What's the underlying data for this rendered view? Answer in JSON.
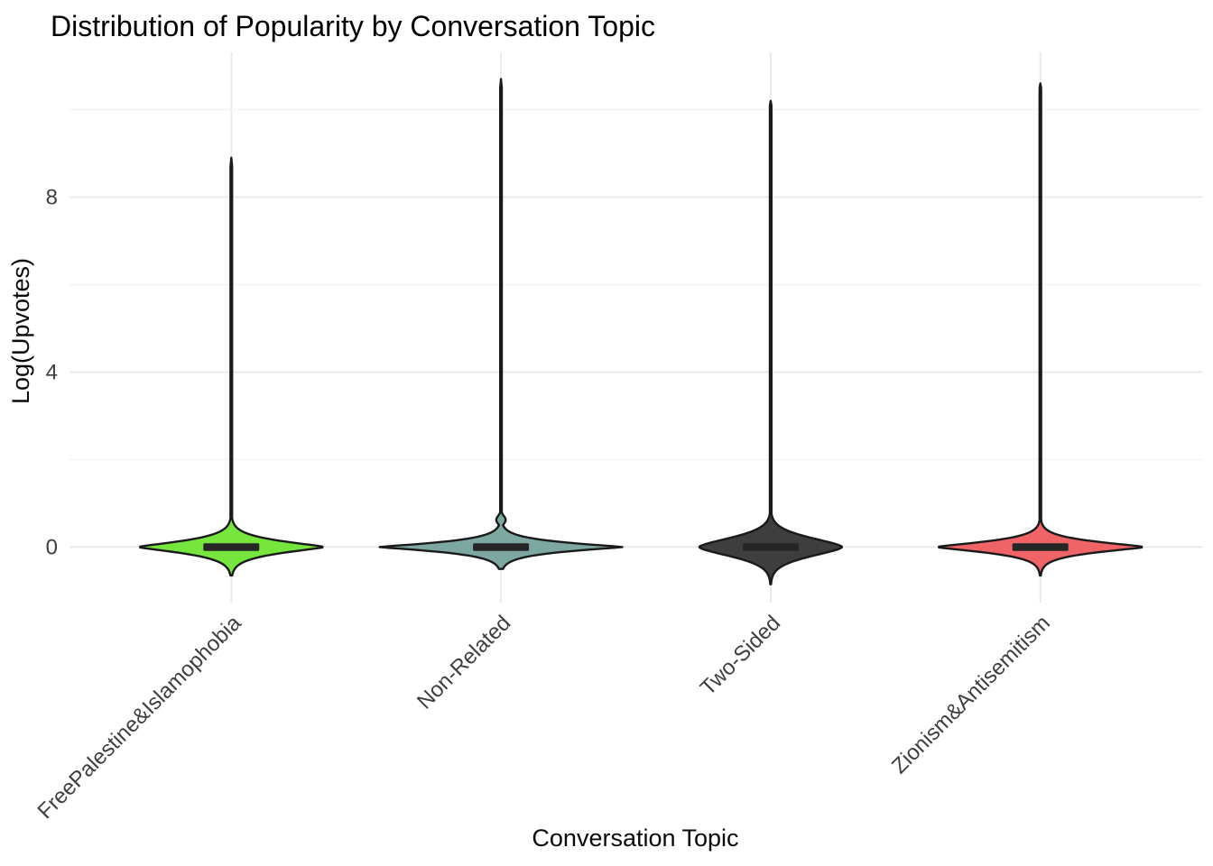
{
  "chart_data": {
    "type": "violin",
    "title": "Distribution of Popularity by Conversation Topic",
    "xlabel": "Conversation Topic",
    "ylabel": "Log(Upvotes)",
    "ylim": [
      -1.27,
      11.31
    ],
    "yticks": [
      0,
      4,
      8
    ],
    "yticks_minor": [
      2,
      6,
      10
    ],
    "ytick_labels": [
      "0",
      "4",
      "8"
    ],
    "grid": true,
    "legend": false,
    "background": "#ffffff",
    "categories": [
      "FreePalestine&Islamophobia",
      "Non-Related",
      "Two-Sided",
      "Zionism&Antisemitism"
    ],
    "colors": {
      "outline": "#1a1a1a",
      "median_bar": "#262626",
      "grid_major": "#e8e8e8",
      "grid_minor": "#f4f4f4",
      "tick_label": "#3f3f3f",
      "category_label": "#3f3f3f",
      "title": "#000000"
    },
    "violins": [
      {
        "label": "FreePalestine&Islamophobia",
        "fill": "#76e63f",
        "median": 0,
        "peak_density_at": 0,
        "body_min": -0.65,
        "tail_max": 8.9,
        "rel_width": 0.69,
        "decay": 0.2,
        "shape_exp": 1.3,
        "bumps": []
      },
      {
        "label": "Non-Related",
        "fill": "#7da8a1",
        "median": 0,
        "peak_density_at": 0,
        "body_min": -0.5,
        "tail_max": 10.7,
        "rel_width": 0.9,
        "decay": 0.155,
        "shape_exp": 1.2,
        "bumps": [
          {
            "at": 0.62,
            "rel_width": 0.035,
            "sigma": 0.13
          }
        ]
      },
      {
        "label": "Two-Sided",
        "fill": "#3e3e3e",
        "median": 0,
        "peak_density_at": 0,
        "body_min": -0.85,
        "tail_max": 10.2,
        "rel_width": 0.53,
        "decay": 0.3,
        "shape_exp": 1.6,
        "bumps": []
      },
      {
        "label": "Zionism&Antisemitism",
        "fill": "#f06468",
        "median": 0,
        "peak_density_at": 0,
        "body_min": -0.65,
        "tail_max": 10.6,
        "rel_width": 0.77,
        "decay": 0.18,
        "shape_exp": 1.3,
        "bumps": []
      }
    ]
  }
}
